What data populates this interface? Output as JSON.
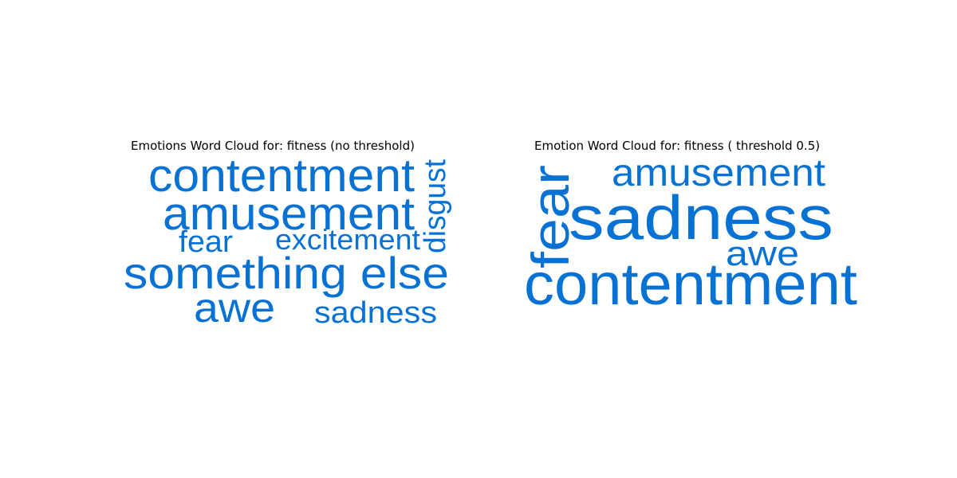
{
  "chart_data": [
    {
      "type": "wordcloud",
      "title": "Emotions Word Cloud for: fitness (no threshold)",
      "color": "#0872d4",
      "words": [
        {
          "text": "contentment",
          "orientation": "horizontal"
        },
        {
          "text": "amusement",
          "orientation": "horizontal"
        },
        {
          "text": "disgust",
          "orientation": "vertical"
        },
        {
          "text": "fear",
          "orientation": "horizontal"
        },
        {
          "text": "excitement",
          "orientation": "horizontal"
        },
        {
          "text": "something else",
          "orientation": "horizontal"
        },
        {
          "text": "awe",
          "orientation": "horizontal"
        },
        {
          "text": "sadness",
          "orientation": "horizontal"
        }
      ]
    },
    {
      "type": "wordcloud",
      "title": "Emotion Word Cloud for: fitness ( threshold 0.5)",
      "color": "#0872d4",
      "words": [
        {
          "text": "amusement",
          "orientation": "horizontal"
        },
        {
          "text": "fear",
          "orientation": "vertical"
        },
        {
          "text": "sadness",
          "orientation": "horizontal"
        },
        {
          "text": "awe",
          "orientation": "horizontal"
        },
        {
          "text": "contentment",
          "orientation": "horizontal"
        }
      ]
    }
  ]
}
